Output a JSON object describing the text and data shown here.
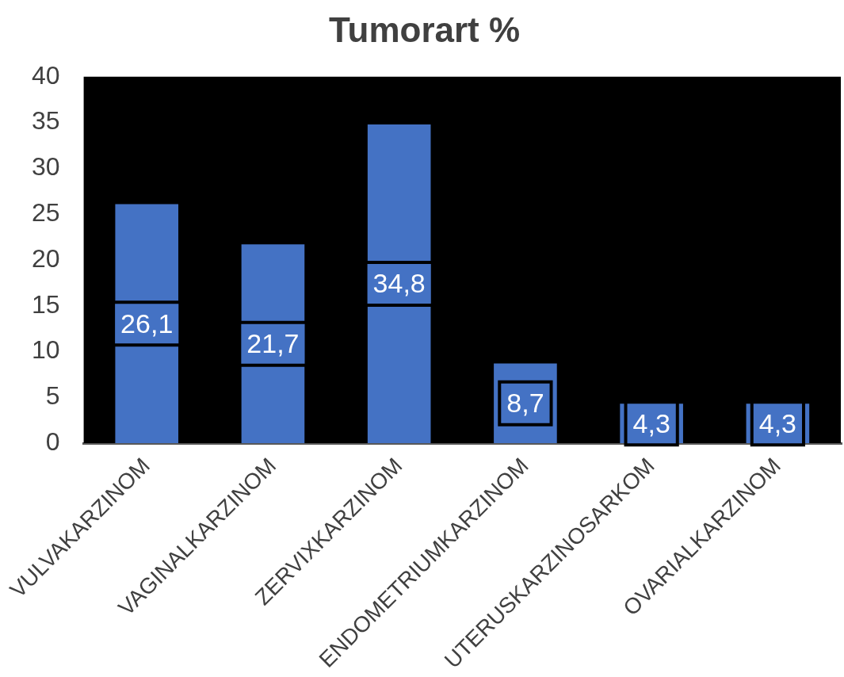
{
  "chart_data": {
    "type": "bar",
    "title": "Tumorart %",
    "categories": [
      "VULVAKARZINOM",
      "VAGINALKARZINOM",
      "ZERVIXKARZINOM",
      "ENDOMETRIUMKARZINOM",
      "UTERUSKARZINOSARKOM",
      "OVARIALKARZINOM"
    ],
    "values": [
      26.1,
      21.7,
      34.8,
      8.7,
      4.3,
      4.3
    ],
    "value_labels": [
      "26,1",
      "21,7",
      "34,8",
      "8,7",
      "4,3",
      "4,3"
    ],
    "color": "#4472c4",
    "ylim": [
      0,
      40
    ],
    "yticks": [
      0,
      5,
      10,
      15,
      20,
      25,
      30,
      35,
      40
    ],
    "grid": false,
    "legend": false
  }
}
